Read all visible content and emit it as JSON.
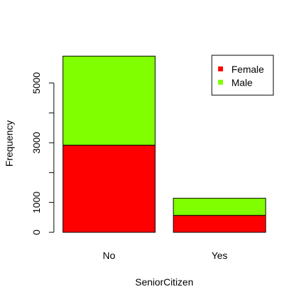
{
  "chart_data": {
    "type": "bar",
    "stacked": true,
    "title": "",
    "xlabel": "SeniorCitizen",
    "ylabel": "Frequency",
    "categories": [
      "No",
      "Yes"
    ],
    "series": [
      {
        "name": "Female",
        "values": [
          2920,
          568
        ],
        "color": "#ff0000"
      },
      {
        "name": "Male",
        "values": [
          2981,
          574
        ],
        "color": "#80ff00"
      }
    ],
    "ylim": [
      0,
      6000
    ],
    "yticks": [
      0,
      1000,
      2000,
      3000,
      4000,
      5000
    ],
    "yticklabels": [
      "0",
      "1000",
      "",
      "3000",
      "",
      "5000"
    ],
    "legend_position": "top-right",
    "grid": false
  }
}
